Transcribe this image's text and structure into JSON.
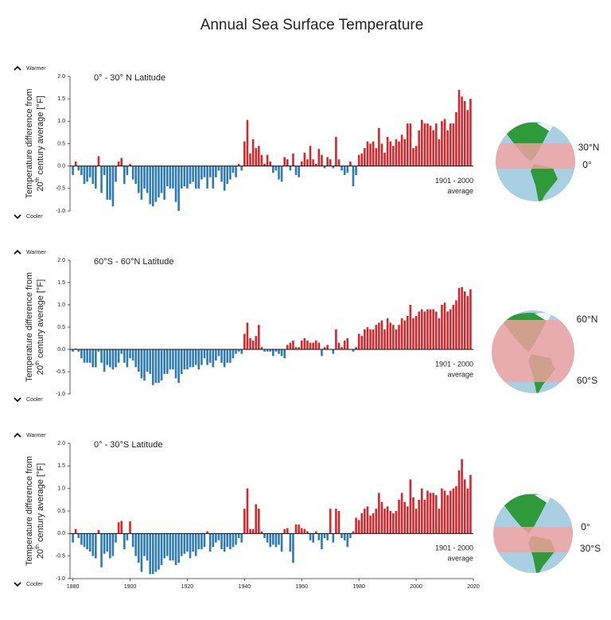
{
  "title": "Annual Sea Surface Temperature",
  "chart_data": [
    {
      "type": "bar",
      "subtitle": "0° - 30° N Latitude",
      "warmer": "Warmer",
      "cooler": "Cooler",
      "y_label": [
        "Temperature difference from",
        "20",
        "th",
        " century average [°F]"
      ],
      "baseline_note": [
        "1901 - 2000",
        "average"
      ],
      "globe_labels": [
        "30°N",
        "0°"
      ],
      "color_above": "#d7262b",
      "color_below": "#2c7bb6",
      "xlim": [
        1879,
        2020
      ],
      "ylim": [
        -1,
        2
      ],
      "yticks": [
        {
          "value": 2,
          "label": "2.0"
        },
        1.5,
        {
          "value": 1,
          "label": "1.0"
        },
        0.5,
        {
          "value": 0,
          "label": "0.0"
        },
        -0.5,
        {
          "value": -1,
          "label": "-1.0"
        }
      ],
      "x": [
        1880,
        1881,
        1882,
        1883,
        1884,
        1885,
        1886,
        1887,
        1888,
        1889,
        1890,
        1891,
        1892,
        1893,
        1894,
        1895,
        1896,
        1897,
        1898,
        1899,
        1900,
        1901,
        1902,
        1903,
        1904,
        1905,
        1906,
        1907,
        1908,
        1909,
        1910,
        1911,
        1912,
        1913,
        1914,
        1915,
        1916,
        1917,
        1918,
        1919,
        1920,
        1921,
        1922,
        1923,
        1924,
        1925,
        1926,
        1927,
        1928,
        1929,
        1930,
        1931,
        1932,
        1933,
        1934,
        1935,
        1936,
        1937,
        1938,
        1939,
        1940,
        1941,
        1942,
        1943,
        1944,
        1945,
        1946,
        1947,
        1948,
        1949,
        1950,
        1951,
        1952,
        1953,
        1954,
        1955,
        1956,
        1957,
        1958,
        1959,
        1960,
        1961,
        1962,
        1963,
        1964,
        1965,
        1966,
        1967,
        1968,
        1969,
        1970,
        1971,
        1972,
        1973,
        1974,
        1975,
        1976,
        1977,
        1978,
        1979,
        1980,
        1981,
        1982,
        1983,
        1984,
        1985,
        1986,
        1987,
        1988,
        1989,
        1990,
        1991,
        1992,
        1993,
        1994,
        1995,
        1996,
        1997,
        1998,
        1999,
        2000,
        2001,
        2002,
        2003,
        2004,
        2005,
        2006,
        2007,
        2008,
        2009,
        2010,
        2011,
        2012,
        2013,
        2014,
        2015,
        2016,
        2017,
        2018,
        2019
      ],
      "values": [
        -0.2,
        0.1,
        -0.1,
        -0.2,
        -0.4,
        -0.35,
        -0.25,
        -0.4,
        -0.5,
        0.22,
        -0.6,
        -0.2,
        -0.75,
        -0.75,
        -0.9,
        -0.35,
        0.1,
        0.18,
        -0.4,
        -0.2,
        0.05,
        -0.3,
        -0.4,
        -0.6,
        -0.75,
        -0.5,
        -0.6,
        -0.85,
        -0.9,
        -0.8,
        -0.7,
        -0.6,
        -0.75,
        -0.45,
        -0.5,
        -0.5,
        -0.8,
        -1.0,
        -0.5,
        -0.45,
        -0.5,
        -0.4,
        -0.35,
        -0.5,
        -0.5,
        -0.3,
        -0.25,
        -0.5,
        -0.25,
        -0.5,
        -0.25,
        -0.1,
        -0.35,
        -0.55,
        -0.4,
        -0.3,
        -0.15,
        -0.25,
        0.05,
        -0.1,
        0.55,
        1.03,
        0.28,
        0.6,
        0.4,
        0.45,
        0.25,
        0.05,
        0.25,
        0.1,
        -0.15,
        -0.1,
        -0.3,
        -0.35,
        0.2,
        0.15,
        -0.1,
        0.28,
        -0.2,
        -0.25,
        0.1,
        0.3,
        0.15,
        0.45,
        0.15,
        0.05,
        0.38,
        0.25,
        -0.05,
        0.2,
        0.15,
        -0.05,
        0.65,
        0.15,
        -0.1,
        -0.2,
        -0.15,
        0.1,
        -0.45,
        -0.2,
        0.25,
        0.28,
        0.4,
        0.55,
        0.5,
        0.55,
        0.4,
        0.85,
        0.5,
        0.3,
        0.65,
        0.55,
        0.45,
        0.6,
        0.55,
        0.7,
        0.6,
        0.95,
        0.95,
        0.4,
        0.45,
        0.8,
        1.03,
        0.95,
        0.95,
        0.9,
        0.8,
        0.95,
        0.6,
        1.0,
        1.05,
        0.8,
        0.95,
        0.95,
        1.2,
        1.7,
        1.55,
        1.45,
        1.25,
        1.5
      ]
    },
    {
      "type": "bar",
      "subtitle": "60°S - 60°N Latitude",
      "warmer": "Warmer",
      "cooler": "Cooler",
      "y_label": [
        "Temperature difference from",
        "20",
        "th",
        " century average [°F]"
      ],
      "baseline_note": [
        "1901 - 2000",
        "average"
      ],
      "globe_labels": [
        "60°N",
        "60°S"
      ],
      "color_above": "#d7262b",
      "color_below": "#2c7bb6",
      "xlim": [
        1879,
        2020
      ],
      "ylim": [
        -1,
        2
      ],
      "yticks": [
        {
          "value": 2,
          "label": "2.0"
        },
        1.5,
        {
          "value": 1,
          "label": "1.0"
        },
        0.5,
        {
          "value": 0,
          "label": "0.0"
        },
        -0.5,
        {
          "value": -1,
          "label": "-1.0"
        }
      ],
      "x": [
        1880,
        1881,
        1882,
        1883,
        1884,
        1885,
        1886,
        1887,
        1888,
        1889,
        1890,
        1891,
        1892,
        1893,
        1894,
        1895,
        1896,
        1897,
        1898,
        1899,
        1900,
        1901,
        1902,
        1903,
        1904,
        1905,
        1906,
        1907,
        1908,
        1909,
        1910,
        1911,
        1912,
        1913,
        1914,
        1915,
        1916,
        1917,
        1918,
        1919,
        1920,
        1921,
        1922,
        1923,
        1924,
        1925,
        1926,
        1927,
        1928,
        1929,
        1930,
        1931,
        1932,
        1933,
        1934,
        1935,
        1936,
        1937,
        1938,
        1939,
        1940,
        1941,
        1942,
        1943,
        1944,
        1945,
        1946,
        1947,
        1948,
        1949,
        1950,
        1951,
        1952,
        1953,
        1954,
        1955,
        1956,
        1957,
        1958,
        1959,
        1960,
        1961,
        1962,
        1963,
        1964,
        1965,
        1966,
        1967,
        1968,
        1969,
        1970,
        1971,
        1972,
        1973,
        1974,
        1975,
        1976,
        1977,
        1978,
        1979,
        1980,
        1981,
        1982,
        1983,
        1984,
        1985,
        1986,
        1987,
        1988,
        1989,
        1990,
        1991,
        1992,
        1993,
        1994,
        1995,
        1996,
        1997,
        1998,
        1999,
        2000,
        2001,
        2002,
        2003,
        2004,
        2005,
        2006,
        2007,
        2008,
        2009,
        2010,
        2011,
        2012,
        2013,
        2014,
        2015,
        2016,
        2017,
        2018,
        2019
      ],
      "values": [
        -0.05,
        0.02,
        -0.05,
        -0.2,
        -0.3,
        -0.3,
        -0.3,
        -0.4,
        -0.4,
        -0.05,
        -0.3,
        -0.5,
        -0.35,
        -0.4,
        -0.45,
        -0.4,
        -0.3,
        -0.1,
        -0.3,
        -0.4,
        -0.2,
        -0.25,
        -0.4,
        -0.5,
        -0.65,
        -0.7,
        -0.5,
        -0.55,
        -0.8,
        -0.75,
        -0.75,
        -0.7,
        -0.55,
        -0.55,
        -0.45,
        -0.45,
        -0.65,
        -0.75,
        -0.55,
        -0.45,
        -0.45,
        -0.4,
        -0.4,
        -0.35,
        -0.45,
        -0.35,
        -0.2,
        -0.35,
        -0.3,
        -0.4,
        -0.25,
        -0.15,
        -0.3,
        -0.4,
        -0.3,
        -0.3,
        -0.2,
        -0.1,
        -0.05,
        -0.1,
        0.35,
        0.6,
        0.25,
        0.2,
        0.3,
        0.55,
        0.05,
        -0.05,
        -0.05,
        -0.05,
        -0.15,
        -0.05,
        -0.1,
        -0.15,
        -0.2,
        0.1,
        0.15,
        0.2,
        0.05,
        0.05,
        0.2,
        0.25,
        0.2,
        0.15,
        0.15,
        0.2,
        0.15,
        -0.15,
        0.05,
        0.1,
        0.0,
        -0.1,
        0.45,
        0.15,
        0.05,
        0.2,
        0.25,
        0.0,
        -0.05,
        0.05,
        0.35,
        0.3,
        0.45,
        0.5,
        0.45,
        0.45,
        0.55,
        0.6,
        0.65,
        0.45,
        0.7,
        0.6,
        0.55,
        0.45,
        0.55,
        0.7,
        0.65,
        0.75,
        1.0,
        0.7,
        0.75,
        0.85,
        0.9,
        0.85,
        0.9,
        0.9,
        0.9,
        0.85,
        0.7,
        1.0,
        1.05,
        0.85,
        0.9,
        1.0,
        1.1,
        1.38,
        1.4,
        1.3,
        1.2,
        1.35
      ]
    },
    {
      "type": "bar",
      "subtitle": "0° - 30°S Latitude",
      "warmer": "Warmer",
      "cooler": "Cooler",
      "y_label": [
        "Temperature difference from",
        "20",
        "th",
        " century average [°F]"
      ],
      "baseline_note": [
        "1901 - 2000",
        "average"
      ],
      "globe_labels": [
        "0°",
        "30°S"
      ],
      "color_above": "#d7262b",
      "color_below": "#2c7bb6",
      "xlim": [
        1879,
        2020
      ],
      "ylim": [
        -1,
        2
      ],
      "yticks": [
        {
          "value": 2,
          "label": "2.0"
        },
        1.5,
        {
          "value": 1,
          "label": "1.0"
        },
        0.5,
        {
          "value": 0,
          "label": "0.0"
        },
        -0.5,
        {
          "value": -1,
          "label": "-1.0"
        }
      ],
      "xticks": [
        1880,
        1900,
        1920,
        1940,
        1960,
        1980,
        2000,
        2020
      ],
      "x": [
        1880,
        1881,
        1882,
        1883,
        1884,
        1885,
        1886,
        1887,
        1888,
        1889,
        1890,
        1891,
        1892,
        1893,
        1894,
        1895,
        1896,
        1897,
        1898,
        1899,
        1900,
        1901,
        1902,
        1903,
        1904,
        1905,
        1906,
        1907,
        1908,
        1909,
        1910,
        1911,
        1912,
        1913,
        1914,
        1915,
        1916,
        1917,
        1918,
        1919,
        1920,
        1921,
        1922,
        1923,
        1924,
        1925,
        1926,
        1927,
        1928,
        1929,
        1930,
        1931,
        1932,
        1933,
        1934,
        1935,
        1936,
        1937,
        1938,
        1939,
        1940,
        1941,
        1942,
        1943,
        1944,
        1945,
        1946,
        1947,
        1948,
        1949,
        1950,
        1951,
        1952,
        1953,
        1954,
        1955,
        1956,
        1957,
        1958,
        1959,
        1960,
        1961,
        1962,
        1963,
        1964,
        1965,
        1966,
        1967,
        1968,
        1969,
        1970,
        1971,
        1972,
        1973,
        1974,
        1975,
        1976,
        1977,
        1978,
        1979,
        1980,
        1981,
        1982,
        1983,
        1984,
        1985,
        1986,
        1987,
        1988,
        1989,
        1990,
        1991,
        1992,
        1993,
        1994,
        1995,
        1996,
        1997,
        1998,
        1999,
        2000,
        2001,
        2002,
        2003,
        2004,
        2005,
        2006,
        2007,
        2008,
        2009,
        2010,
        2011,
        2012,
        2013,
        2014,
        2015,
        2016,
        2017,
        2018,
        2019
      ],
      "values": [
        -0.2,
        0.1,
        -0.1,
        -0.25,
        -0.3,
        -0.35,
        -0.4,
        -0.5,
        -0.55,
        0.08,
        -0.75,
        -0.45,
        -0.4,
        -0.55,
        -0.5,
        -0.2,
        0.25,
        0.28,
        -0.35,
        -0.15,
        0.27,
        -0.3,
        -0.5,
        -0.65,
        -0.85,
        -0.5,
        -0.6,
        -0.9,
        -0.9,
        -0.85,
        -0.8,
        -0.7,
        -0.55,
        -0.5,
        -0.6,
        -0.6,
        -0.7,
        -0.65,
        -0.5,
        -0.45,
        -0.4,
        -0.55,
        -0.4,
        -0.5,
        -0.35,
        -0.35,
        -0.3,
        0.05,
        -0.4,
        -0.3,
        -0.2,
        -0.15,
        -0.35,
        -0.4,
        -0.3,
        -0.35,
        -0.3,
        -0.25,
        -0.1,
        -0.2,
        0.55,
        1.0,
        0.1,
        0.1,
        0.65,
        0.55,
        0.05,
        -0.1,
        -0.2,
        -0.3,
        -0.25,
        -0.3,
        -0.25,
        -0.4,
        0.1,
        0.12,
        -0.4,
        -0.65,
        0.2,
        0.2,
        0.12,
        0.1,
        0.05,
        -0.15,
        -0.2,
        0.05,
        -0.15,
        -0.35,
        -0.1,
        -0.15,
        0.55,
        -0.2,
        0.55,
        0.5,
        -0.1,
        -0.15,
        -0.3,
        -0.1,
        0.05,
        0.35,
        0.3,
        0.45,
        0.55,
        0.6,
        0.4,
        0.45,
        0.55,
        0.9,
        0.7,
        0.55,
        0.6,
        0.5,
        0.45,
        0.5,
        0.75,
        0.9,
        0.7,
        0.6,
        1.2,
        0.8,
        0.55,
        0.75,
        1.0,
        0.75,
        0.95,
        0.9,
        0.9,
        0.85,
        0.55,
        1.0,
        0.95,
        0.85,
        0.95,
        1.0,
        1.05,
        1.4,
        1.65,
        1.2,
        1.0,
        1.3
      ]
    }
  ]
}
